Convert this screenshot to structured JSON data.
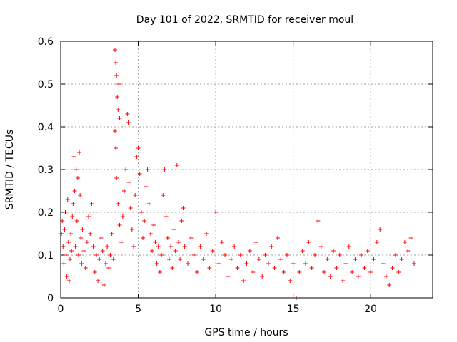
{
  "chart_data": {
    "type": "scatter",
    "title": "Day 101 of 2022, SRMTID for receiver moul",
    "xlabel": "GPS time / hours",
    "ylabel": "SRMTID / TECUs",
    "xlim": [
      0,
      24
    ],
    "ylim": [
      0,
      0.6
    ],
    "xticks": [
      0,
      5,
      10,
      15,
      20
    ],
    "yticks": [
      0,
      0.1,
      0.2,
      0.3,
      0.4,
      0.5,
      0.6
    ],
    "xtick_labels": [
      "0",
      "5",
      "10",
      "15",
      "20"
    ],
    "ytick_labels": [
      "0",
      "0.1",
      "0.2",
      "0.3",
      "0.4",
      "0.5",
      "0.6"
    ],
    "grid": true,
    "marker": "+",
    "color": "#ff0000",
    "series": [
      {
        "name": "SRMTID",
        "points": [
          [
            0.05,
            0.15
          ],
          [
            0.1,
            0.18
          ],
          [
            0.15,
            0.12
          ],
          [
            0.2,
            0.08
          ],
          [
            0.25,
            0.16
          ],
          [
            0.3,
            0.2
          ],
          [
            0.35,
            0.1
          ],
          [
            0.4,
            0.05
          ],
          [
            0.45,
            0.23
          ],
          [
            0.5,
            0.13
          ],
          [
            0.55,
            0.04
          ],
          [
            0.6,
            0.09
          ],
          [
            0.65,
            0.15
          ],
          [
            0.7,
            0.11
          ],
          [
            0.75,
            0.19
          ],
          [
            0.8,
            0.22
          ],
          [
            0.85,
            0.33
          ],
          [
            0.9,
            0.25
          ],
          [
            0.95,
            0.12
          ],
          [
            1.0,
            0.3
          ],
          [
            1.05,
            0.18
          ],
          [
            1.1,
            0.28
          ],
          [
            1.15,
            0.1
          ],
          [
            1.2,
            0.34
          ],
          [
            1.25,
            0.24
          ],
          [
            1.3,
            0.14
          ],
          [
            1.35,
            0.08
          ],
          [
            1.4,
            0.16
          ],
          [
            1.5,
            0.11
          ],
          [
            1.6,
            0.07
          ],
          [
            1.7,
            0.13
          ],
          [
            1.8,
            0.19
          ],
          [
            1.9,
            0.15
          ],
          [
            2.0,
            0.22
          ],
          [
            2.1,
            0.12
          ],
          [
            2.2,
            0.06
          ],
          [
            2.3,
            0.1
          ],
          [
            2.4,
            0.04
          ],
          [
            2.5,
            0.09
          ],
          [
            2.6,
            0.14
          ],
          [
            2.7,
            0.11
          ],
          [
            2.8,
            0.03
          ],
          [
            2.9,
            0.08
          ],
          [
            3.0,
            0.12
          ],
          [
            3.1,
            0.07
          ],
          [
            3.2,
            0.1
          ],
          [
            3.3,
            0.15
          ],
          [
            3.4,
            0.09
          ],
          [
            3.5,
            0.58
          ],
          [
            3.55,
            0.55
          ],
          [
            3.6,
            0.52
          ],
          [
            3.65,
            0.47
          ],
          [
            3.7,
            0.44
          ],
          [
            3.75,
            0.5
          ],
          [
            3.8,
            0.42
          ],
          [
            3.5,
            0.39
          ],
          [
            3.55,
            0.35
          ],
          [
            3.6,
            0.28
          ],
          [
            3.7,
            0.22
          ],
          [
            3.8,
            0.17
          ],
          [
            3.9,
            0.13
          ],
          [
            4.0,
            0.19
          ],
          [
            4.1,
            0.25
          ],
          [
            4.2,
            0.3
          ],
          [
            4.3,
            0.43
          ],
          [
            4.35,
            0.41
          ],
          [
            4.4,
            0.27
          ],
          [
            4.5,
            0.21
          ],
          [
            4.6,
            0.16
          ],
          [
            4.7,
            0.12
          ],
          [
            4.8,
            0.24
          ],
          [
            4.9,
            0.33
          ],
          [
            5.0,
            0.35
          ],
          [
            5.1,
            0.29
          ],
          [
            5.2,
            0.2
          ],
          [
            5.3,
            0.14
          ],
          [
            5.4,
            0.18
          ],
          [
            5.5,
            0.26
          ],
          [
            5.6,
            0.3
          ],
          [
            5.7,
            0.22
          ],
          [
            5.8,
            0.15
          ],
          [
            5.9,
            0.11
          ],
          [
            6.0,
            0.17
          ],
          [
            6.1,
            0.13
          ],
          [
            6.2,
            0.08
          ],
          [
            6.3,
            0.12
          ],
          [
            6.4,
            0.06
          ],
          [
            6.5,
            0.1
          ],
          [
            6.6,
            0.24
          ],
          [
            6.7,
            0.3
          ],
          [
            6.8,
            0.19
          ],
          [
            6.9,
            0.14
          ],
          [
            7.0,
            0.09
          ],
          [
            7.1,
            0.12
          ],
          [
            7.2,
            0.07
          ],
          [
            7.3,
            0.16
          ],
          [
            7.4,
            0.11
          ],
          [
            7.5,
            0.31
          ],
          [
            7.6,
            0.13
          ],
          [
            7.7,
            0.09
          ],
          [
            7.8,
            0.18
          ],
          [
            7.9,
            0.21
          ],
          [
            8.0,
            0.12
          ],
          [
            8.2,
            0.08
          ],
          [
            8.4,
            0.14
          ],
          [
            8.6,
            0.1
          ],
          [
            8.8,
            0.06
          ],
          [
            9.0,
            0.12
          ],
          [
            9.2,
            0.09
          ],
          [
            9.4,
            0.15
          ],
          [
            9.6,
            0.07
          ],
          [
            9.8,
            0.11
          ],
          [
            10.0,
            0.2
          ],
          [
            10.2,
            0.08
          ],
          [
            10.4,
            0.13
          ],
          [
            10.6,
            0.1
          ],
          [
            10.8,
            0.05
          ],
          [
            11.0,
            0.09
          ],
          [
            11.2,
            0.12
          ],
          [
            11.4,
            0.07
          ],
          [
            11.6,
            0.1
          ],
          [
            11.8,
            0.04
          ],
          [
            12.0,
            0.08
          ],
          [
            12.2,
            0.11
          ],
          [
            12.4,
            0.06
          ],
          [
            12.6,
            0.13
          ],
          [
            12.8,
            0.09
          ],
          [
            13.0,
            0.05
          ],
          [
            13.2,
            0.1
          ],
          [
            13.4,
            0.08
          ],
          [
            13.6,
            0.12
          ],
          [
            13.8,
            0.07
          ],
          [
            14.0,
            0.14
          ],
          [
            14.2,
            0.09
          ],
          [
            14.4,
            0.06
          ],
          [
            14.6,
            0.1
          ],
          [
            14.8,
            0.04
          ],
          [
            15.0,
            0.08
          ],
          [
            15.2,
            0.0
          ],
          [
            15.4,
            0.06
          ],
          [
            15.6,
            0.11
          ],
          [
            15.8,
            0.08
          ],
          [
            16.0,
            0.13
          ],
          [
            16.2,
            0.07
          ],
          [
            16.4,
            0.1
          ],
          [
            16.6,
            0.18
          ],
          [
            16.8,
            0.12
          ],
          [
            17.0,
            0.06
          ],
          [
            17.2,
            0.09
          ],
          [
            17.4,
            0.05
          ],
          [
            17.6,
            0.11
          ],
          [
            17.8,
            0.07
          ],
          [
            18.0,
            0.1
          ],
          [
            18.2,
            0.04
          ],
          [
            18.4,
            0.08
          ],
          [
            18.6,
            0.12
          ],
          [
            18.8,
            0.06
          ],
          [
            19.0,
            0.09
          ],
          [
            19.2,
            0.05
          ],
          [
            19.4,
            0.1
          ],
          [
            19.6,
            0.07
          ],
          [
            19.8,
            0.11
          ],
          [
            20.0,
            0.06
          ],
          [
            20.2,
            0.09
          ],
          [
            20.4,
            0.13
          ],
          [
            20.6,
            0.16
          ],
          [
            20.8,
            0.08
          ],
          [
            21.0,
            0.05
          ],
          [
            21.2,
            0.03
          ],
          [
            21.4,
            0.07
          ],
          [
            21.6,
            0.1
          ],
          [
            21.8,
            0.06
          ],
          [
            22.0,
            0.09
          ],
          [
            22.2,
            0.13
          ],
          [
            22.4,
            0.11
          ],
          [
            22.6,
            0.14
          ],
          [
            22.8,
            0.08
          ]
        ]
      }
    ]
  }
}
